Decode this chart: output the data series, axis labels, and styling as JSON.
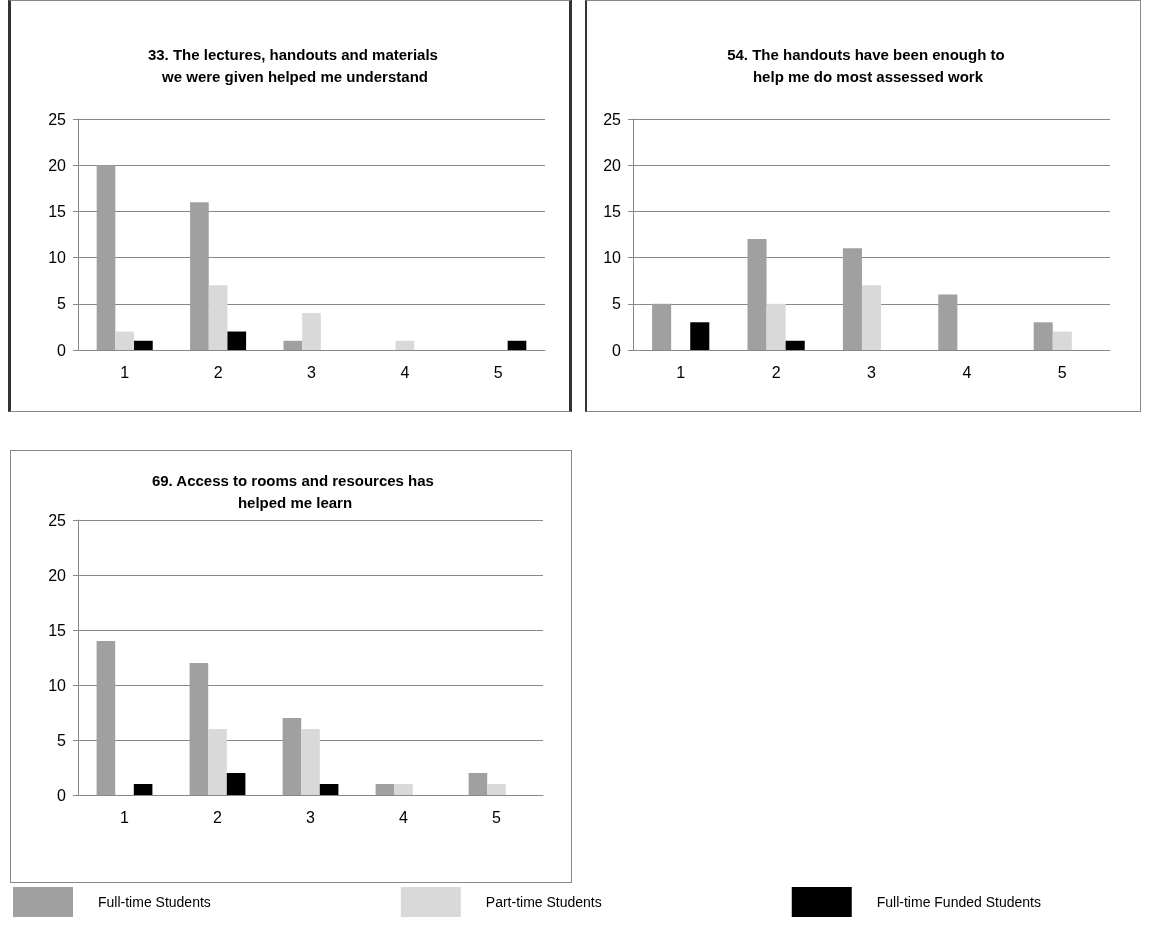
{
  "chart_data": [
    {
      "type": "bar",
      "title": "33. The lectures, handouts and materials we were given helped me understand",
      "categories": [
        "1",
        "2",
        "3",
        "4",
        "5"
      ],
      "series": [
        {
          "color": "#a0a0a0",
          "values": [
            20,
            16,
            1,
            0,
            0
          ]
        },
        {
          "color": "#d9d9d9",
          "values": [
            2,
            7,
            4,
            1,
            0
          ]
        },
        {
          "color": "#000000",
          "values": [
            1,
            2,
            0,
            0,
            1
          ]
        }
      ],
      "ylim": [
        0,
        25
      ],
      "yticks": [
        0,
        5,
        10,
        15,
        20,
        25
      ],
      "grid": "y"
    },
    {
      "type": "bar",
      "title": "54. The handouts have been enough to help me do most assessed work",
      "categories": [
        "1",
        "2",
        "3",
        "4",
        "5"
      ],
      "series": [
        {
          "color": "#a0a0a0",
          "values": [
            5,
            12,
            11,
            6,
            3
          ]
        },
        {
          "color": "#d9d9d9",
          "values": [
            0,
            5,
            7,
            0,
            2
          ]
        },
        {
          "color": "#000000",
          "values": [
            3,
            1,
            0,
            0,
            0
          ]
        }
      ],
      "ylim": [
        0,
        25
      ],
      "yticks": [
        0,
        5,
        10,
        15,
        20,
        25
      ],
      "grid": "y"
    },
    {
      "type": "bar",
      "title": "69. Access to rooms and resources has helped me learn",
      "categories": [
        "1",
        "2",
        "3",
        "4",
        "5"
      ],
      "series": [
        {
          "name": "Full-time Students",
          "color": "#a0a0a0",
          "values": [
            14,
            12,
            7,
            1,
            2
          ]
        },
        {
          "name": "Part-time Students",
          "color": "#d9d9d9",
          "values": [
            0,
            6,
            6,
            1,
            1
          ]
        },
        {
          "name": "Full-time Funded Students",
          "color": "#000000",
          "values": [
            1,
            2,
            1,
            0,
            0
          ]
        }
      ],
      "ylim": [
        0,
        25
      ],
      "yticks": [
        0,
        5,
        10,
        15,
        20,
        25
      ],
      "grid": "y",
      "legend": "bottom"
    }
  ]
}
